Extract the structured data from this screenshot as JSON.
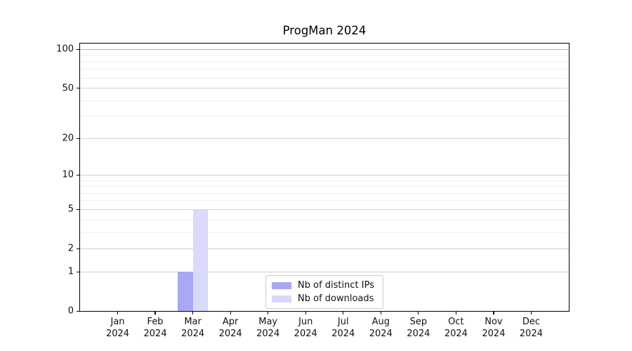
{
  "chart_data": {
    "type": "bar",
    "title": "ProgMan 2024",
    "categories": [
      "Jan\n2024",
      "Feb\n2024",
      "Mar\n2024",
      "Apr\n2024",
      "May\n2024",
      "Jun\n2024",
      "Jul\n2024",
      "Aug\n2024",
      "Sep\n2024",
      "Oct\n2024",
      "Nov\n2024",
      "Dec\n2024"
    ],
    "series": [
      {
        "name": "Nb of distinct IPs",
        "color": "#a8a8f6",
        "values": [
          0,
          0,
          1,
          0,
          0,
          0,
          0,
          0,
          0,
          0,
          0,
          0
        ]
      },
      {
        "name": "Nb of downloads",
        "color": "#d9d9f9",
        "values": [
          0,
          0,
          5,
          0,
          0,
          0,
          0,
          0,
          0,
          0,
          0,
          0
        ]
      }
    ],
    "xlabel": "",
    "ylabel": "",
    "yscale": "log1p",
    "ylim": [
      0,
      111
    ],
    "yticks": [
      0,
      1,
      2,
      5,
      10,
      20,
      50,
      100
    ],
    "yticks_minor": [
      3,
      4,
      6,
      7,
      8,
      9,
      30,
      40,
      60,
      70,
      80,
      90
    ],
    "grid": "horizontal, major and minor",
    "legend_position": "lower center"
  }
}
